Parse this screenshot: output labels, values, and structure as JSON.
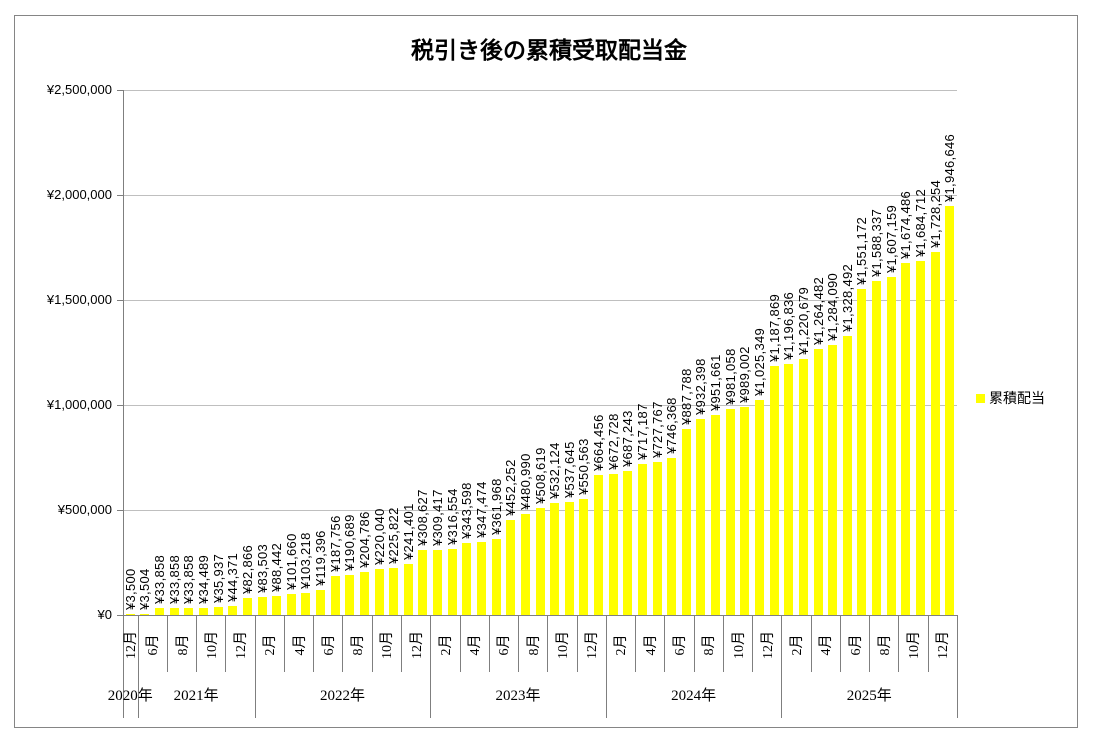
{
  "chart_data": {
    "type": "bar",
    "title": "税引き後の累積受取配当金",
    "legend": {
      "label": "累積配当",
      "position": "right"
    },
    "bar_color": "#ffff00",
    "grid": true,
    "ylim": [
      0,
      2500000
    ],
    "y_tick_interval": 500000,
    "y_tick_labels": [
      "¥0",
      "¥500,000",
      "¥1,000,000",
      "¥1,500,000",
      "¥2,000,000",
      "¥2,500,000"
    ],
    "data_label_format": "¥#,##0",
    "x_axis": "two-level category axis: month ticks grouped by year",
    "groups": [
      {
        "year": "2020年",
        "month_tick_labels": [
          "12月"
        ],
        "values": [
          3500
        ]
      },
      {
        "year": "2021年",
        "month_tick_labels": [
          "6月",
          "8月",
          "10月",
          "12月"
        ],
        "values": [
          3504,
          33858,
          33858,
          33858,
          34489,
          35937,
          44371,
          82866
        ]
      },
      {
        "year": "2022年",
        "month_tick_labels": [
          "2月",
          "4月",
          "6月",
          "8月",
          "10月",
          "12月"
        ],
        "values": [
          83503,
          88442,
          101660,
          103218,
          119396,
          187756,
          190689,
          204786,
          220040,
          225822,
          241401,
          308627
        ]
      },
      {
        "year": "2023年",
        "month_tick_labels": [
          "2月",
          "4月",
          "6月",
          "8月",
          "10月",
          "12月"
        ],
        "values": [
          309417,
          316554,
          343598,
          347474,
          361968,
          452252,
          480990,
          508619,
          532124,
          537645,
          550563,
          664456
        ]
      },
      {
        "year": "2024年",
        "month_tick_labels": [
          "2月",
          "4月",
          "6月",
          "8月",
          "10月",
          "12月"
        ],
        "values": [
          672728,
          687243,
          717187,
          727767,
          746368,
          887788,
          932398,
          951661,
          981058,
          989002,
          1025349,
          1187869
        ]
      },
      {
        "year": "2025年",
        "month_tick_labels": [
          "2月",
          "4月",
          "6月",
          "8月",
          "10月",
          "12月"
        ],
        "values": [
          1196836,
          1220679,
          1264482,
          1284090,
          1328492,
          1551172,
          1588337,
          1607159,
          1674486,
          1684712,
          1728254,
          1946646
        ]
      }
    ]
  }
}
